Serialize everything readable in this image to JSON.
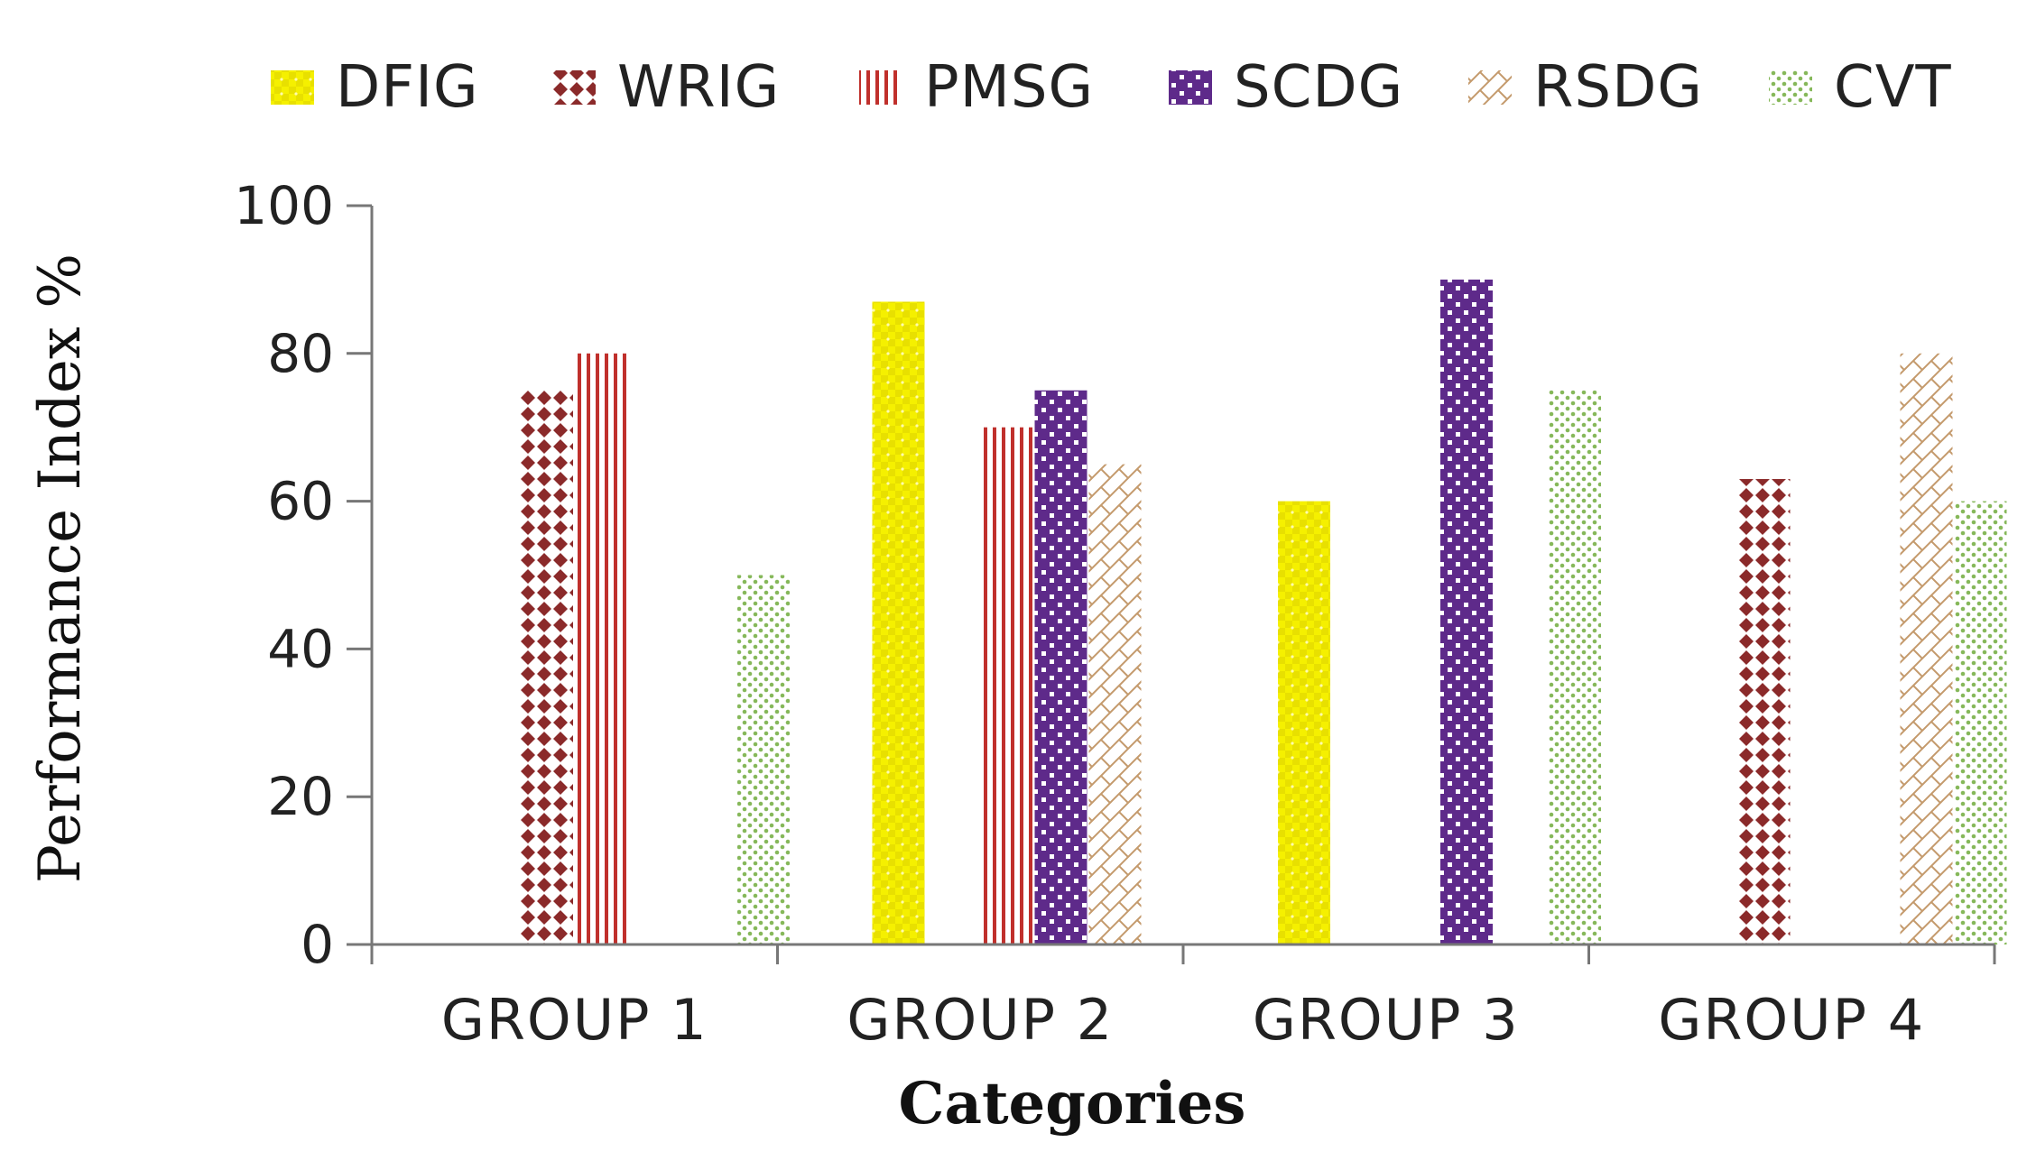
{
  "chart_data": {
    "type": "bar",
    "title": "",
    "xlabel": "Categories",
    "ylabel": "Performance Index %",
    "ylim": [
      0,
      100
    ],
    "yticks": [
      "0",
      "20",
      "40",
      "60",
      "80",
      "100"
    ],
    "categories": [
      "GROUP 1",
      "GROUP 2",
      "GROUP 3",
      "GROUP 4"
    ],
    "legend_position": "top",
    "series": [
      {
        "name": "DFIG",
        "color": "#f5f000",
        "pattern": "checker",
        "values": [
          null,
          87,
          60,
          null
        ]
      },
      {
        "name": "WRIG",
        "color": "#8b2a2a",
        "pattern": "dots",
        "values": [
          75,
          null,
          null,
          63
        ]
      },
      {
        "name": "PMSG",
        "color": "#c0302c",
        "pattern": "vertical-lines",
        "values": [
          80,
          70,
          null,
          null
        ]
      },
      {
        "name": "SCDG",
        "color": "#5e2a8a",
        "pattern": "checker",
        "values": [
          null,
          75,
          90,
          null
        ]
      },
      {
        "name": "RSDG",
        "color": "#c49a6c",
        "pattern": "diagonal-cross",
        "values": [
          null,
          65,
          null,
          80
        ]
      },
      {
        "name": "CVT",
        "color": "#86b85a",
        "pattern": "sparse-dots",
        "values": [
          50,
          null,
          75,
          60
        ]
      }
    ]
  }
}
